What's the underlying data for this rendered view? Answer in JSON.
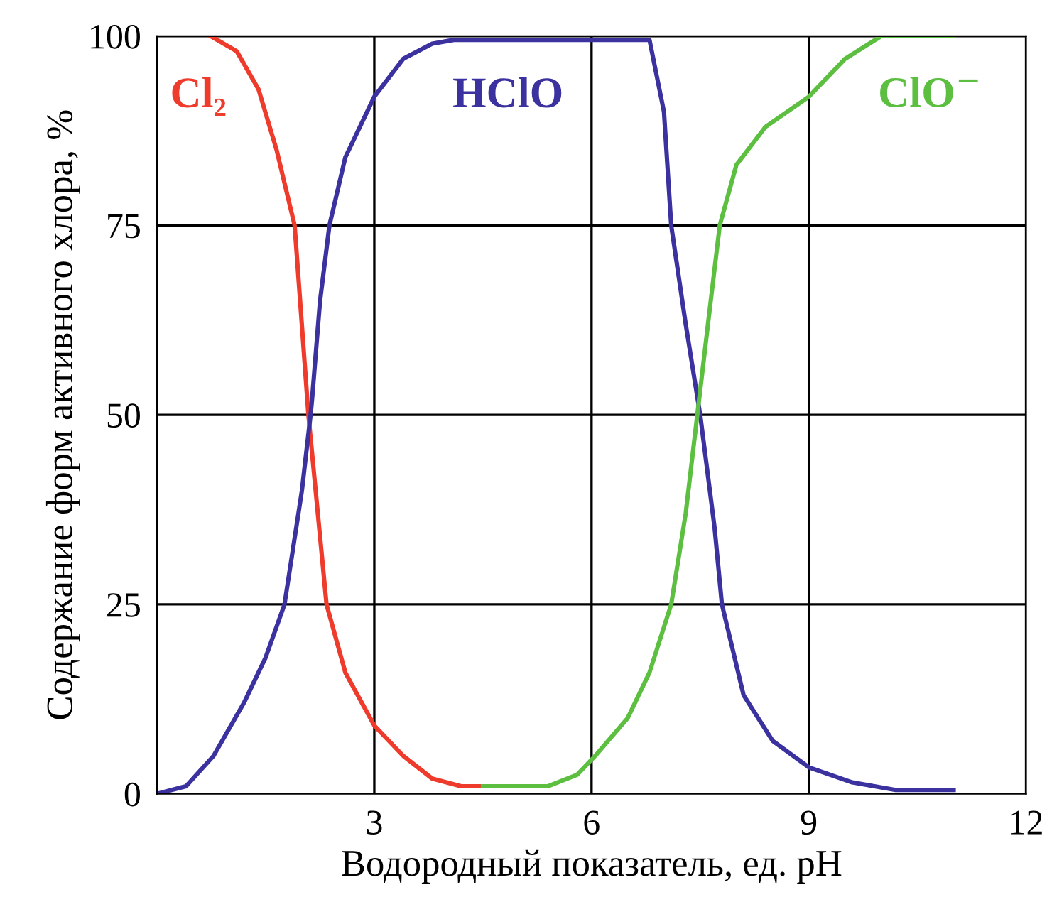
{
  "chart_data": {
    "type": "line",
    "xlabel": "Водородный показатель, ед. pH",
    "ylabel": "Содержание форм активного хлора, %",
    "xlim": [
      0,
      12
    ],
    "ylim": [
      0,
      100
    ],
    "xticks": [
      3,
      6,
      9,
      12
    ],
    "yticks": [
      0,
      25,
      50,
      75,
      100
    ],
    "grid": true,
    "legend": false,
    "marker": "none",
    "line_style": "solid",
    "series": [
      {
        "name": "Cl₂",
        "color": "#ee3b2b",
        "x": [
          0.74,
          1.1,
          1.4,
          1.65,
          1.9,
          2.09,
          2.34,
          2.6,
          3.0,
          3.4,
          3.8,
          4.2,
          4.5
        ],
        "values": [
          100,
          98,
          93,
          85,
          75,
          50,
          25,
          16,
          9,
          5,
          2,
          1,
          1
        ]
      },
      {
        "name": "HClO",
        "color": "#3b32a0",
        "x": [
          0,
          0.4,
          0.78,
          1.2,
          1.5,
          1.76,
          2.0,
          2.12,
          2.14,
          2.25,
          2.38,
          2.6,
          3.0,
          3.4,
          3.8,
          4.1,
          6.8,
          7.0,
          7.1,
          7.3,
          7.5,
          7.7,
          7.8,
          8.1,
          8.5,
          9.0,
          9.6,
          10.2,
          11.0
        ],
        "values": [
          0,
          1,
          5,
          12,
          18,
          25,
          40,
          50,
          52,
          65,
          75,
          84,
          92,
          97,
          99,
          99.5,
          99.5,
          90,
          75,
          62,
          50,
          35,
          25,
          13,
          7,
          3.5,
          1.5,
          0.5,
          0.5
        ]
      },
      {
        "name": "ClO$^{−}$",
        "color": "#5cbf40",
        "x": [
          4.5,
          5.4,
          5.8,
          6.05,
          6.5,
          6.8,
          7.1,
          7.3,
          7.46,
          7.62,
          7.77,
          8.0,
          8.4,
          9.0,
          9.5,
          10.0,
          11.0
        ],
        "values": [
          1,
          1,
          2.5,
          5,
          10,
          16,
          25,
          37,
          50,
          63,
          75,
          83,
          88,
          92,
          97,
          100,
          100
        ]
      }
    ]
  }
}
